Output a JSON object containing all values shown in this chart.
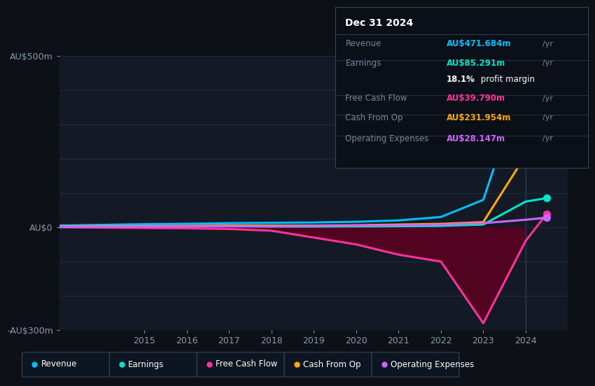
{
  "bg_color": "#0d1117",
  "plot_bg_color": "#131a26",
  "grid_color": "#1e2d40",
  "text_color": "#8899aa",
  "years": [
    2013,
    2014,
    2015,
    2016,
    2017,
    2018,
    2019,
    2020,
    2021,
    2022,
    2023,
    2024,
    2024.5
  ],
  "revenue": [
    5,
    7,
    9,
    10,
    12,
    13,
    14,
    16,
    20,
    30,
    80,
    450,
    471.684
  ],
  "earnings": [
    1,
    1.5,
    2,
    2.5,
    3,
    2,
    2,
    2.5,
    3,
    4,
    8,
    75,
    85.291
  ],
  "free_cash_flow": [
    0,
    -1,
    -2,
    -3,
    -5,
    -10,
    -30,
    -50,
    -80,
    -100,
    -280,
    -40,
    39.79
  ],
  "cash_from_op": [
    2,
    3,
    3,
    4,
    5,
    5,
    5,
    6,
    8,
    10,
    15,
    210,
    231.954
  ],
  "operating_expenses": [
    1,
    2,
    2,
    3,
    3,
    3,
    4,
    5,
    6,
    8,
    12,
    22,
    28.147
  ],
  "revenue_color": "#00bfff",
  "earnings_color": "#00e5cc",
  "free_cash_flow_color": "#ff3399",
  "cash_from_op_color": "#ffaa00",
  "operating_expenses_color": "#cc66ff",
  "fcf_fill_color": "#5a0020",
  "ylim": [
    -300,
    500
  ],
  "yticks": [
    -300,
    0,
    500
  ],
  "ytick_labels": [
    "-AU$300m",
    "AU$0",
    "AU$500m"
  ],
  "xlim_min": 2013.0,
  "xlim_max": 2025.0,
  "xticks": [
    2015,
    2016,
    2017,
    2018,
    2019,
    2020,
    2021,
    2022,
    2023,
    2024
  ],
  "box_title": "Dec 31 2024",
  "box_rows": [
    {
      "label": "Revenue",
      "value": "AU$471.684m",
      "suffix": "/yr",
      "color": "#00bfff"
    },
    {
      "label": "Earnings",
      "value": "AU$85.291m",
      "suffix": "/yr",
      "color": "#00e5cc"
    },
    {
      "label": "",
      "value": "18.1% profit margin",
      "suffix": "",
      "color": "#ffffff"
    },
    {
      "label": "Free Cash Flow",
      "value": "AU$39.790m",
      "suffix": "/yr",
      "color": "#ff3399"
    },
    {
      "label": "Cash From Op",
      "value": "AU$231.954m",
      "suffix": "/yr",
      "color": "#ffaa00"
    },
    {
      "label": "Operating Expenses",
      "value": "AU$28.147m",
      "suffix": "/yr",
      "color": "#cc66ff"
    }
  ],
  "legend_items": [
    {
      "label": "Revenue",
      "color": "#00bfff"
    },
    {
      "label": "Earnings",
      "color": "#00e5cc"
    },
    {
      "label": "Free Cash Flow",
      "color": "#ff3399"
    },
    {
      "label": "Cash From Op",
      "color": "#ffaa00"
    },
    {
      "label": "Operating Expenses",
      "color": "#cc66ff"
    }
  ]
}
